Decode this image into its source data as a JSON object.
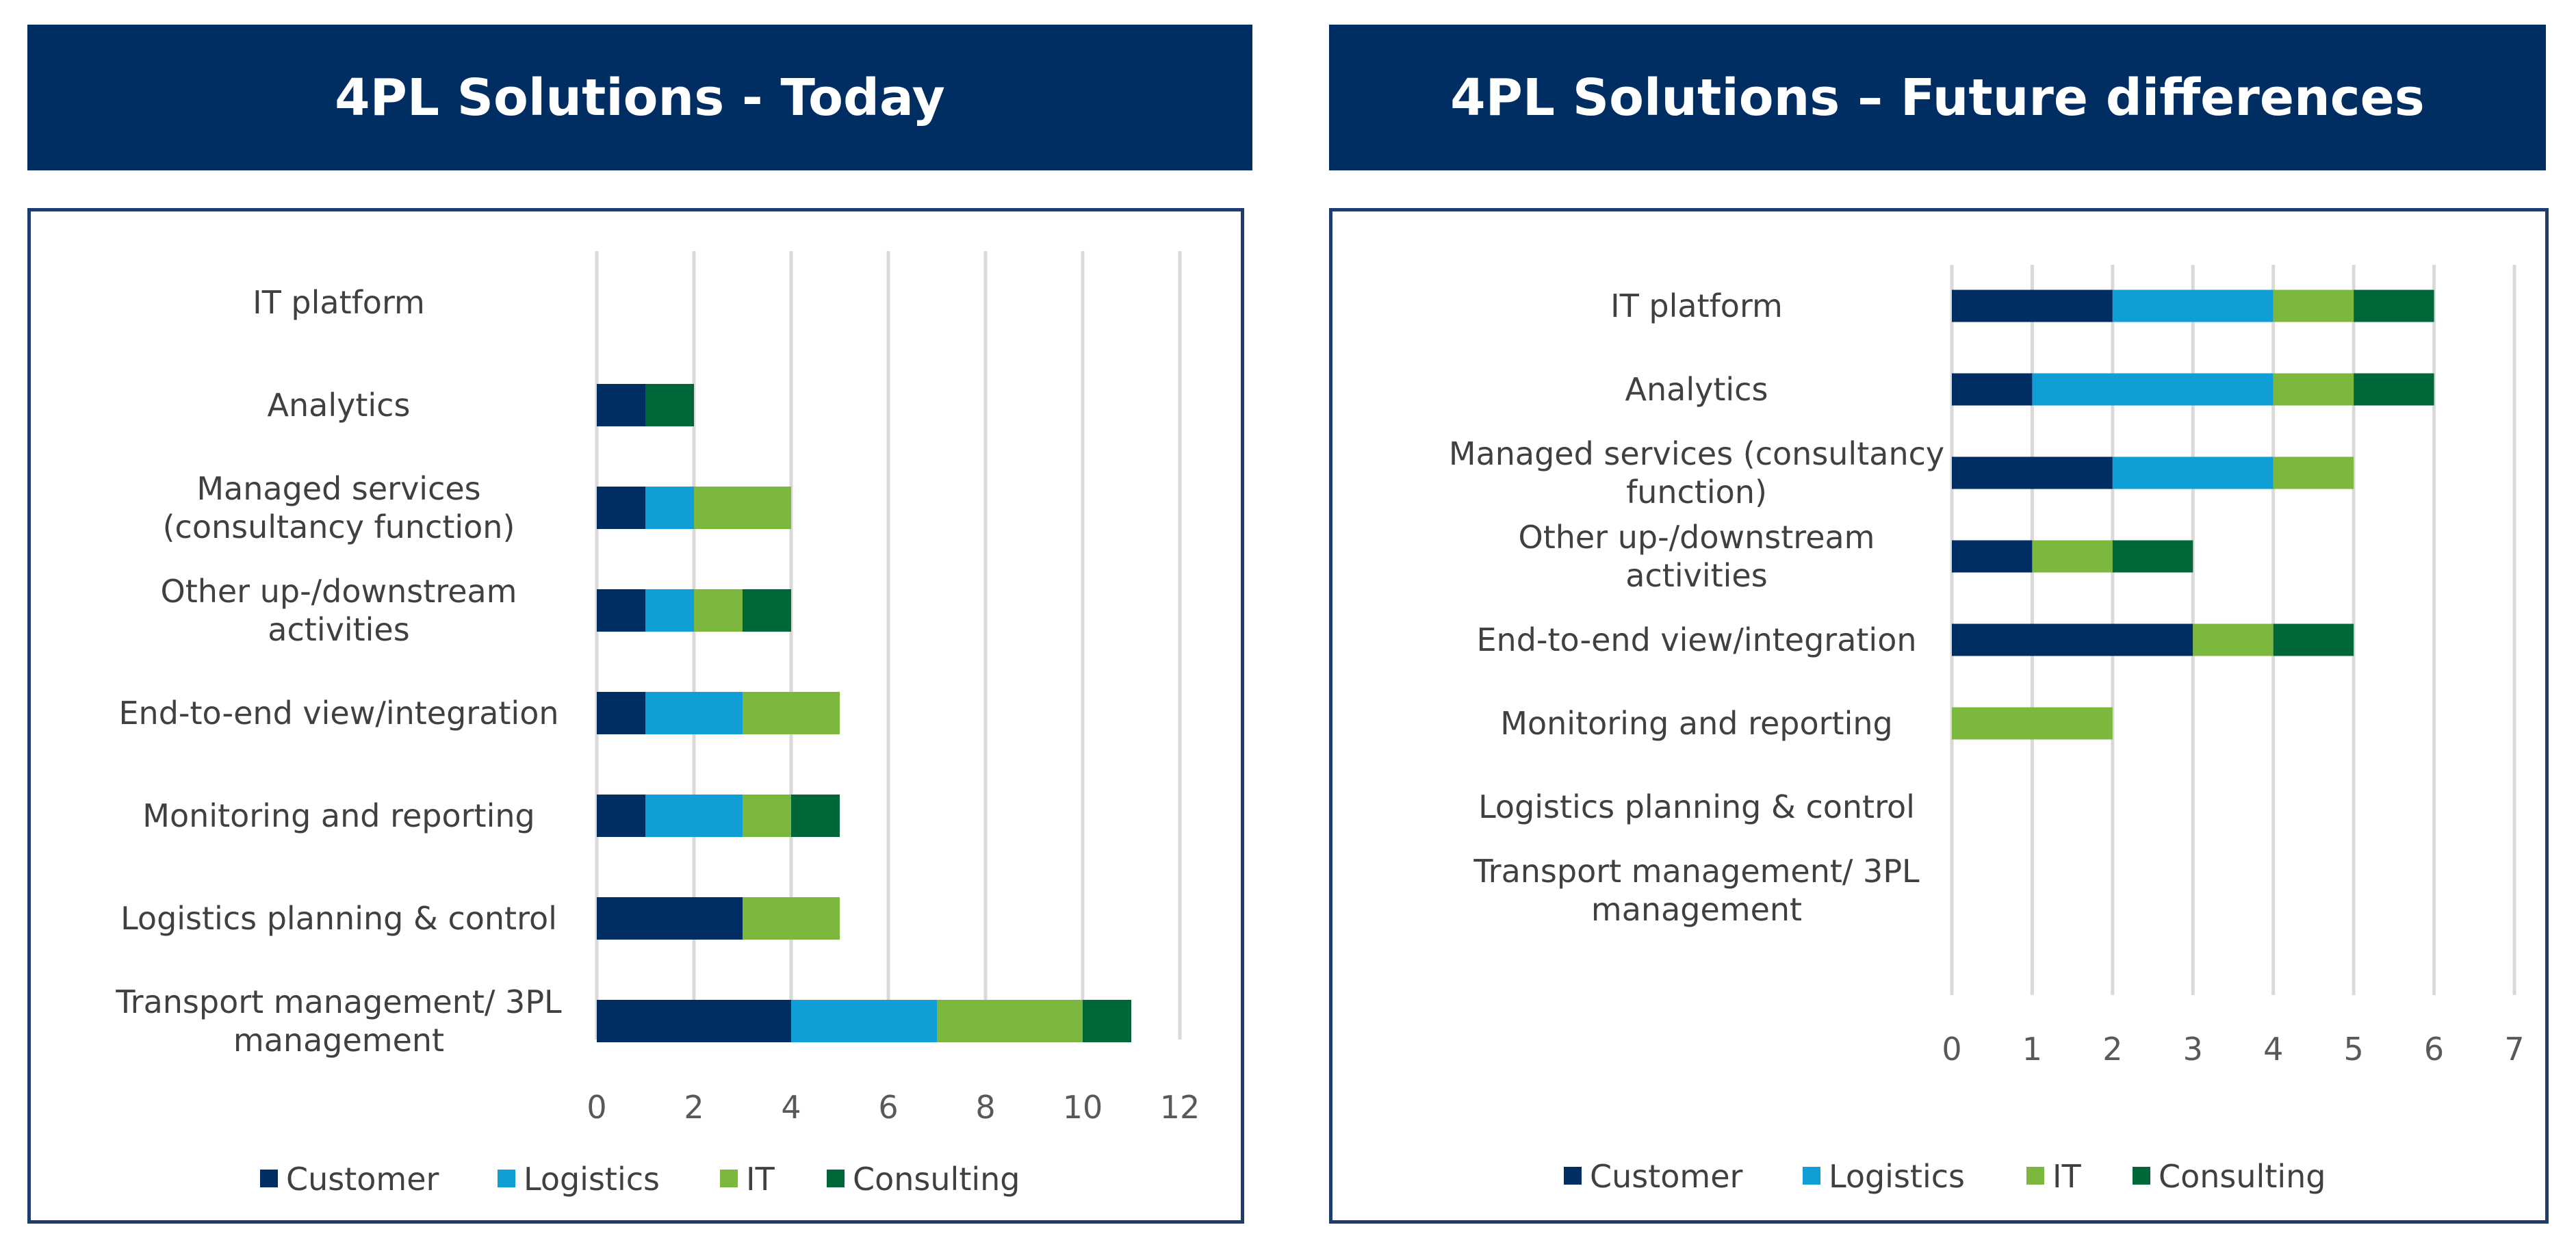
{
  "colors": {
    "banner": "#002d62",
    "Customer": "#002d62",
    "Logistics": "#0f9ed5",
    "IT": "#7cb83e",
    "Consulting": "#006838",
    "grid": "#d9d9d9"
  },
  "chart_data": [
    {
      "type": "bar",
      "orientation": "horizontal",
      "stacked": true,
      "title": "4PL Solutions - Today",
      "categories": [
        [
          "IT platform"
        ],
        [
          "Analytics"
        ],
        [
          "Managed services",
          "(consultancy function)"
        ],
        [
          "Other up-/downstream",
          "activities"
        ],
        [
          "End-to-end view/integration"
        ],
        [
          "Monitoring and reporting"
        ],
        [
          "Logistics planning & control"
        ],
        [
          "Transport management/ 3PL",
          "management"
        ]
      ],
      "series": [
        {
          "name": "Customer",
          "values": [
            0,
            1,
            1,
            1,
            1,
            1,
            3,
            4
          ]
        },
        {
          "name": "Logistics",
          "values": [
            0,
            0,
            1,
            1,
            2,
            2,
            0,
            3
          ]
        },
        {
          "name": "IT",
          "values": [
            0,
            0,
            2,
            1,
            2,
            1,
            2,
            3
          ]
        },
        {
          "name": "Consulting",
          "values": [
            0,
            1,
            0,
            1,
            0,
            1,
            0,
            1
          ]
        }
      ],
      "xlim": [
        0,
        12
      ],
      "xticks": [
        "0",
        "2",
        "4",
        "6",
        "8",
        "10",
        "12"
      ],
      "legend": "bottom",
      "grid": true
    },
    {
      "type": "bar",
      "orientation": "horizontal",
      "stacked": true,
      "title": "4PL Solutions – Future differences",
      "categories": [
        [
          "IT platform"
        ],
        [
          "Analytics"
        ],
        [
          "Managed services (consultancy",
          "function)"
        ],
        [
          "Other up-/downstream",
          "activities"
        ],
        [
          "End-to-end view/integration"
        ],
        [
          "Monitoring and reporting"
        ],
        [
          "Logistics planning & control"
        ],
        [
          "Transport management/ 3PL",
          "management"
        ]
      ],
      "series": [
        {
          "name": "Customer",
          "values": [
            2,
            1,
            2,
            1,
            3,
            0,
            0,
            0
          ]
        },
        {
          "name": "Logistics",
          "values": [
            2,
            3,
            2,
            0,
            0,
            0,
            0,
            0
          ]
        },
        {
          "name": "IT",
          "values": [
            1,
            1,
            1,
            1,
            1,
            2,
            0,
            0
          ]
        },
        {
          "name": "Consulting",
          "values": [
            1,
            1,
            0,
            1,
            1,
            0,
            0,
            0
          ]
        }
      ],
      "xlim": [
        0,
        7
      ],
      "xticks": [
        "0",
        "1",
        "2",
        "3",
        "4",
        "5",
        "6",
        "7"
      ],
      "legend": "bottom",
      "grid": true
    }
  ]
}
